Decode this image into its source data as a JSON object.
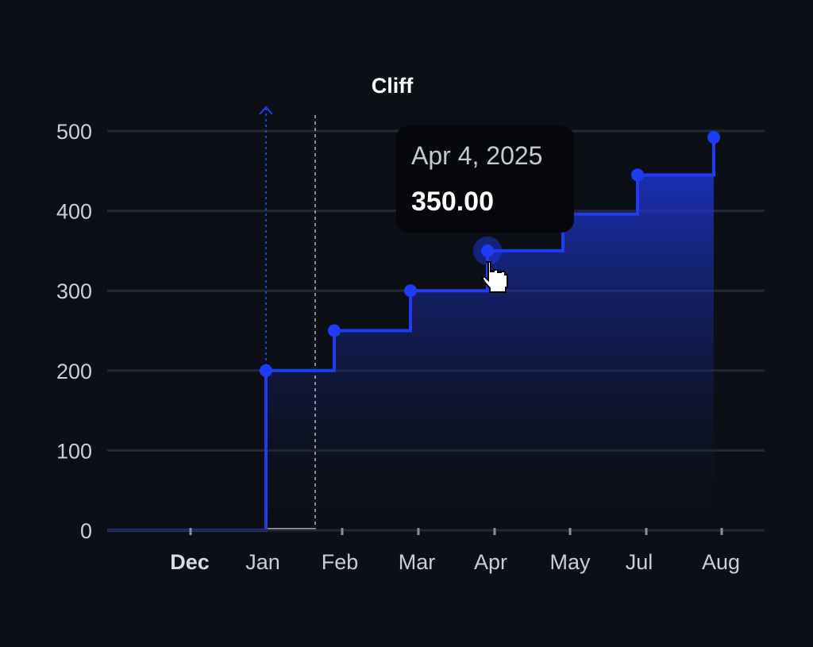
{
  "chart_data": {
    "type": "line",
    "step": true,
    "title": "",
    "annotation": "Cliff",
    "x_tick_labels": [
      {
        "label": "Dec",
        "bold": true
      },
      {
        "label": "Jan",
        "bold": false
      },
      {
        "label": "Feb",
        "bold": false
      },
      {
        "label": "Mar",
        "bold": false
      },
      {
        "label": "Apr",
        "bold": false
      },
      {
        "label": "May",
        "bold": false
      },
      {
        "label": "Jul",
        "bold": false
      },
      {
        "label": "Aug",
        "bold": false
      }
    ],
    "y_ticks": [
      0,
      100,
      200,
      300,
      400,
      500
    ],
    "ylim": [
      0,
      500
    ],
    "grid": true,
    "series": [
      {
        "color": "#1f3cf5",
        "points": [
          {
            "x": "Jan",
            "y": 200
          },
          {
            "x": "Feb",
            "y": 250
          },
          {
            "x": "Mar",
            "y": 300
          },
          {
            "x": "Apr",
            "y": 350
          },
          {
            "x": "May",
            "y": 396
          },
          {
            "x": "Jul",
            "y": 445
          },
          {
            "x": "Aug",
            "y": 492
          }
        ]
      }
    ],
    "tooltip": {
      "date": "Apr 4, 2025",
      "value": "350.00"
    }
  },
  "colors": {
    "background": "#0c1016",
    "grid": "#232833",
    "line": "#1f3cf5",
    "marker": "#1f3cf5",
    "cliff_line": "#8a8f99"
  }
}
